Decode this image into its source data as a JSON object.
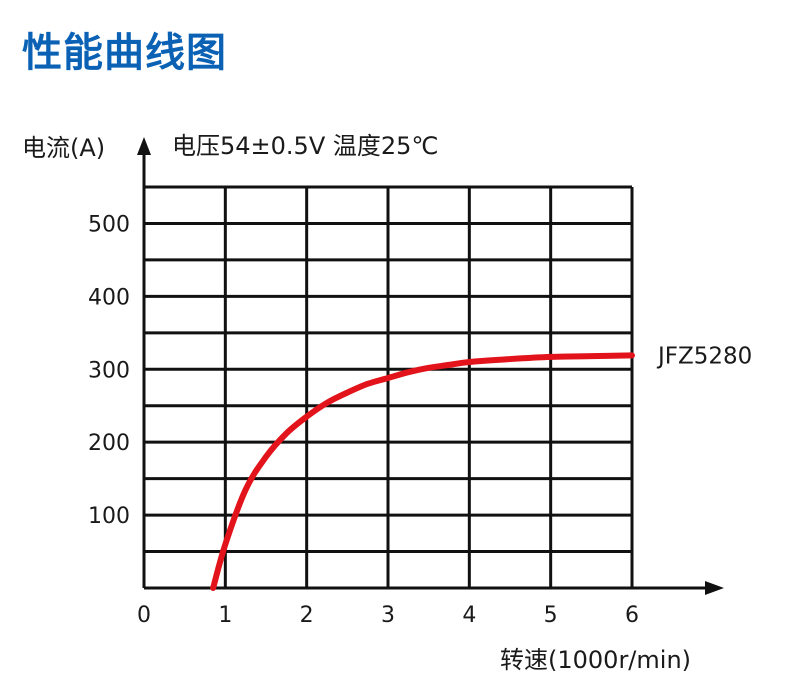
{
  "page": {
    "title": "性能曲线图"
  },
  "chart_data": {
    "type": "line",
    "ylabel": "电流(A)",
    "xlabel": "转速(1000r/min)",
    "conditions": "电压54±0.5V 温度25℃",
    "xlim": [
      0,
      6
    ],
    "ylim": [
      0,
      550
    ],
    "x_ticks": [
      "0",
      "1",
      "2",
      "3",
      "4",
      "5",
      "6"
    ],
    "y_ticks": [
      "100",
      "200",
      "300",
      "400",
      "500"
    ],
    "y_tick_values": [
      100,
      200,
      300,
      400,
      500
    ],
    "grid": true,
    "series": [
      {
        "name": "JFZ5280",
        "color": "#e3131b",
        "x": [
          0.85,
          1.0,
          1.25,
          1.5,
          1.75,
          2.0,
          2.25,
          2.5,
          2.75,
          3.0,
          3.25,
          3.5,
          3.75,
          4.0,
          4.5,
          5.0,
          5.5,
          6.0
        ],
        "y": [
          0,
          60,
          135,
          180,
          212,
          235,
          254,
          268,
          280,
          288,
          296,
          302,
          306,
          310,
          314,
          317,
          318,
          319
        ]
      }
    ]
  }
}
